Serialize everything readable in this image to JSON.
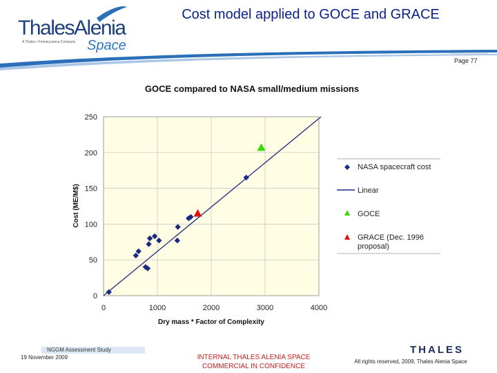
{
  "header": {
    "logo_text": "ThalesAlenia",
    "logo_tagline": "A Thales / Finmeccanica Company",
    "logo_space": "Space",
    "title": "Cost model applied to GOCE and GRACE",
    "page_number": "Page 77"
  },
  "colors": {
    "title": "#0b1f8a",
    "nasa": "#1b2a80",
    "linear": "#1b2a80",
    "goce": "#33dd00",
    "grace": "#e01010",
    "plot_bg": "#fffde3",
    "grid": "#bfbfbf",
    "confidential": "#c81d1d"
  },
  "chart_data": {
    "type": "scatter",
    "title": "GOCE compared to NASA small/medium missions",
    "xlabel": "Dry mass * Factor of Complexity",
    "ylabel": "Cost (ME/M$)",
    "xlim": [
      0,
      4000
    ],
    "ylim": [
      0,
      250
    ],
    "x_ticks": [
      "0",
      "1000",
      "2000",
      "3000",
      "4000"
    ],
    "y_ticks": [
      "0",
      "50",
      "100",
      "150",
      "200",
      "250"
    ],
    "grid": true,
    "legend_position": "right",
    "series": [
      {
        "name": "NASA spacecraft cost",
        "marker": "diamond",
        "points": [
          [
            100,
            5
          ],
          [
            600,
            56
          ],
          [
            650,
            62
          ],
          [
            780,
            40
          ],
          [
            820,
            38
          ],
          [
            840,
            72
          ],
          [
            860,
            80
          ],
          [
            950,
            83
          ],
          [
            1030,
            77
          ],
          [
            1380,
            96
          ],
          [
            1370,
            77
          ],
          [
            1580,
            108
          ],
          [
            1620,
            110
          ],
          [
            2650,
            165
          ]
        ]
      },
      {
        "name": "Linear",
        "marker": "line",
        "points": [
          [
            0,
            0
          ],
          [
            4040,
            250
          ]
        ]
      },
      {
        "name": "GOCE",
        "marker": "triangle",
        "points": [
          [
            2930,
            207
          ]
        ]
      },
      {
        "name": "GRACE (Dec. 1996 proposal)",
        "marker": "triangle",
        "points": [
          [
            1750,
            115
          ]
        ]
      }
    ]
  },
  "footer": {
    "study": "NGGM Assessment Study",
    "date": "19 November 2009",
    "confidential_line1": "INTERNAL THALES ALENIA SPACE",
    "confidential_line2": "COMMERCIAL IN CONFIDENCE",
    "thales_logo": "THALES",
    "rights": "All rights reserved, 2009, Thales Alenia Space"
  }
}
